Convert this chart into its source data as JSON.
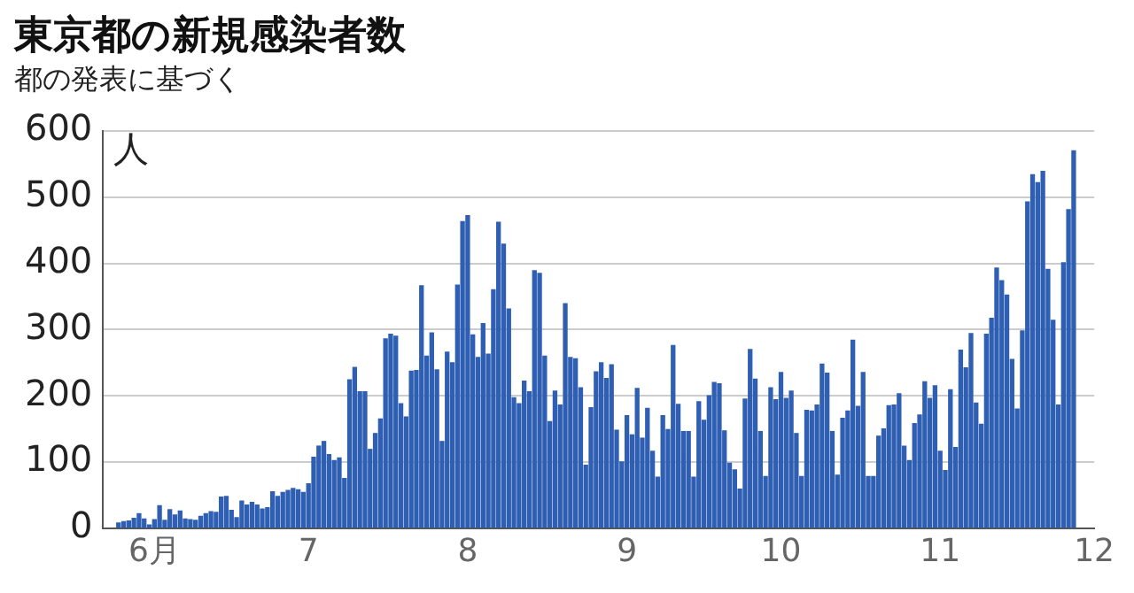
{
  "chart_data": {
    "type": "bar",
    "title": "東京都の新規感染者数",
    "subtitle": "都の発表に基づく",
    "ylabel": "人",
    "x": [
      "--05-25",
      "--05-26",
      "--05-27",
      "--05-28",
      "--05-29",
      "--05-30",
      "--05-31",
      "--06-01",
      "--06-02",
      "--06-03",
      "--06-04",
      "--06-05",
      "--06-06",
      "--06-07",
      "--06-08",
      "--06-09",
      "--06-10",
      "--06-11",
      "--06-12",
      "--06-13",
      "--06-14",
      "--06-15",
      "--06-16",
      "--06-17",
      "--06-18",
      "--06-19",
      "--06-20",
      "--06-21",
      "--06-22",
      "--06-23",
      "--06-24",
      "--06-25",
      "--06-26",
      "--06-27",
      "--06-28",
      "--06-29",
      "--06-30",
      "--07-01",
      "--07-02",
      "--07-03",
      "--07-04",
      "--07-05",
      "--07-06",
      "--07-07",
      "--07-08",
      "--07-09",
      "--07-10",
      "--07-11",
      "--07-12",
      "--07-13",
      "--07-14",
      "--07-15",
      "--07-16",
      "--07-17",
      "--07-18",
      "--07-19",
      "--07-20",
      "--07-21",
      "--07-22",
      "--07-23",
      "--07-24",
      "--07-25",
      "--07-26",
      "--07-27",
      "--07-28",
      "--07-29",
      "--07-30",
      "--07-31",
      "--08-01",
      "--08-02",
      "--08-03",
      "--08-04",
      "--08-05",
      "--08-06",
      "--08-07",
      "--08-08",
      "--08-09",
      "--08-10",
      "--08-11",
      "--08-12",
      "--08-13",
      "--08-14",
      "--08-15",
      "--08-16",
      "--08-17",
      "--08-18",
      "--08-19",
      "--08-20",
      "--08-21",
      "--08-22",
      "--08-23",
      "--08-24",
      "--08-25",
      "--08-26",
      "--08-27",
      "--08-28",
      "--08-29",
      "--08-30",
      "--08-31",
      "--09-01",
      "--09-02",
      "--09-03",
      "--09-04",
      "--09-05",
      "--09-06",
      "--09-07",
      "--09-08",
      "--09-09",
      "--09-10",
      "--09-11",
      "--09-12",
      "--09-13",
      "--09-14",
      "--09-15",
      "--09-16",
      "--09-17",
      "--09-18",
      "--09-19",
      "--09-20",
      "--09-21",
      "--09-22",
      "--09-23",
      "--09-24",
      "--09-25",
      "--09-26",
      "--09-27",
      "--09-28",
      "--09-29",
      "--09-30",
      "--10-01",
      "--10-02",
      "--10-03",
      "--10-04",
      "--10-05",
      "--10-06",
      "--10-07",
      "--10-08",
      "--10-09",
      "--10-10",
      "--10-11",
      "--10-12",
      "--10-13",
      "--10-14",
      "--10-15",
      "--10-16",
      "--10-17",
      "--10-18",
      "--10-19",
      "--10-20",
      "--10-21",
      "--10-22",
      "--10-23",
      "--10-24",
      "--10-25",
      "--10-26",
      "--10-27",
      "--10-28",
      "--10-29",
      "--10-30",
      "--10-31",
      "--11-01",
      "--11-02",
      "--11-03",
      "--11-04",
      "--11-05",
      "--11-06",
      "--11-07",
      "--11-08",
      "--11-09",
      "--11-10",
      "--11-11",
      "--11-12",
      "--11-13",
      "--11-14",
      "--11-15",
      "--11-16",
      "--11-17",
      "--11-18",
      "--11-19",
      "--11-20",
      "--11-21",
      "--11-22",
      "--11-23",
      "--11-24",
      "--11-25",
      "--11-26",
      "--11-27"
    ],
    "series": [
      {
        "color": "#2f5fb3",
        "values": [
          8,
          10,
          11,
          15,
          22,
          14,
          5,
          13,
          34,
          12,
          28,
          20,
          26,
          14,
          13,
          12,
          18,
          22,
          25,
          24,
          47,
          48,
          27,
          16,
          41,
          35,
          39,
          35,
          29,
          31,
          55,
          48,
          54,
          57,
          60,
          58,
          54,
          67,
          107,
          124,
          131,
          111,
          102,
          106,
          75,
          224,
          243,
          206,
          206,
          119,
          143,
          165,
          286,
          293,
          290,
          188,
          168,
          237,
          238,
          366,
          260,
          295,
          239,
          131,
          266,
          250,
          367,
          463,
          472,
          292,
          258,
          309,
          263,
          360,
          462,
          429,
          331,
          197,
          188,
          222,
          206,
          389,
          385,
          260,
          161,
          207,
          186,
          339,
          258,
          256,
          212,
          95,
          182,
          236,
          250,
          226,
          247,
          148,
          100,
          170,
          141,
          211,
          136,
          181,
          116,
          77,
          170,
          149,
          276,
          187,
          146,
          146,
          77,
          191,
          163,
          200,
          220,
          218,
          147,
          98,
          88,
          59,
          195,
          270,
          225,
          146,
          78,
          212,
          194,
          235,
          196,
          207,
          143,
          78,
          178,
          177,
          186,
          248,
          234,
          146,
          80,
          166,
          177,
          284,
          184,
          235,
          78,
          78,
          139,
          150,
          185,
          186,
          203,
          124,
          102,
          158,
          171,
          221,
          196,
          215,
          116,
          87,
          209,
          122,
          269,
          242,
          294,
          189,
          157,
          293,
          317,
          393,
          374,
          352,
          255,
          180,
          298,
          493,
          534,
          522,
          539,
          391,
          314,
          186,
          401,
          481,
          570
        ]
      }
    ],
    "xlim": [
      "--05-22",
      "--12-01"
    ],
    "xticks": [
      {
        "value": "--06-01",
        "label": "6月"
      },
      {
        "value": "--07-01",
        "label": "7"
      },
      {
        "value": "--08-01",
        "label": "8"
      },
      {
        "value": "--09-01",
        "label": "9"
      },
      {
        "value": "--10-01",
        "label": "10"
      },
      {
        "value": "--11-01",
        "label": "11"
      },
      {
        "value": "--12-01",
        "label": "12"
      }
    ],
    "ylim": [
      0,
      600
    ],
    "yticks": [
      0,
      100,
      200,
      300,
      400,
      500,
      600
    ],
    "grid": "y"
  }
}
